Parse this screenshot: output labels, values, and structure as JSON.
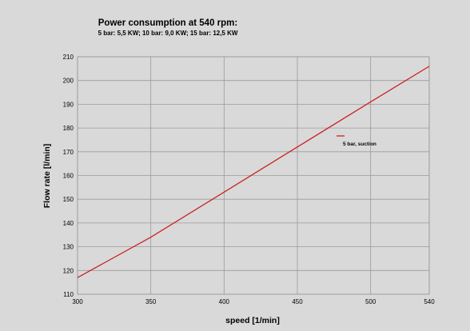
{
  "chart_data": {
    "type": "line",
    "title": "Power consumption at 540 rpm:",
    "subtitle": "5 bar: 5,5 KW; 10 bar: 9,0 KW; 15 bar: 12,5 KW",
    "xlabel": "speed [1/min]",
    "ylabel": "Flow rate [l/min]",
    "xlim": [
      300,
      540
    ],
    "ylim": [
      110,
      210
    ],
    "xticks": [
      300,
      350,
      400,
      450,
      500,
      540
    ],
    "yticks": [
      110,
      120,
      130,
      140,
      150,
      160,
      170,
      180,
      190,
      200,
      210
    ],
    "grid": true,
    "legend_position": "right",
    "series": [
      {
        "name": "5 bar, suction",
        "color": "#cc2222",
        "x": [
          300,
          350,
          400,
          450,
          500,
          540
        ],
        "y": [
          117,
          134,
          153,
          172,
          191,
          206
        ]
      }
    ]
  },
  "colors": {
    "background": "#d9d9d9",
    "grid": "#9a9a9a",
    "series": "#cc2222"
  }
}
